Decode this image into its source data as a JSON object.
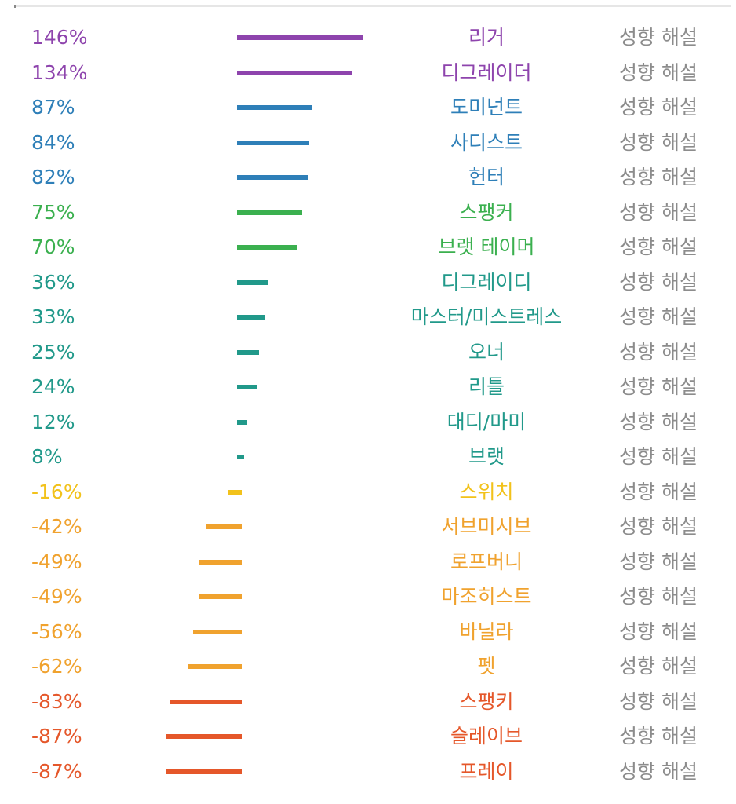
{
  "chart_data": {
    "type": "bar",
    "orientation": "horizontal",
    "title": "",
    "xlabel": "",
    "ylabel": "",
    "grid": false,
    "categories": [
      "리거",
      "디그레이더",
      "도미넌트",
      "사디스트",
      "헌터",
      "스팽커",
      "브랫 테이머",
      "디그레이디",
      "마스터/미스트레스",
      "오너",
      "리틀",
      "대디/마미",
      "브랫",
      "스위치",
      "서브미시브",
      "로프버니",
      "마조히스트",
      "바닐라",
      "펫",
      "스팽키",
      "슬레이브",
      "프레이"
    ],
    "value_labels": [
      "146%",
      "134%",
      "87%",
      "84%",
      "82%",
      "75%",
      "70%",
      "36%",
      "33%",
      "25%",
      "24%",
      "12%",
      "8%",
      "-16%",
      "-42%",
      "-49%",
      "-49%",
      "-56%",
      "-62%",
      "-83%",
      "-87%",
      "-87%"
    ],
    "values": [
      146,
      134,
      87,
      84,
      82,
      75,
      70,
      36,
      33,
      25,
      24,
      12,
      8,
      -16,
      -42,
      -49,
      -49,
      -56,
      -62,
      -83,
      -87,
      -87
    ],
    "colors": [
      "#8e44ad",
      "#8e44ad",
      "#2e7fb8",
      "#2e7fb8",
      "#2e7fb8",
      "#3bb04f",
      "#3bb04f",
      "#21998a",
      "#21998a",
      "#21998a",
      "#21998a",
      "#21998a",
      "#21998a",
      "#f2c21b",
      "#f0a22e",
      "#f0a22e",
      "#f0a22e",
      "#f0a22e",
      "#f0a22e",
      "#e5572a",
      "#e5572a",
      "#e5572a"
    ],
    "detail_label": "성향 해설"
  }
}
